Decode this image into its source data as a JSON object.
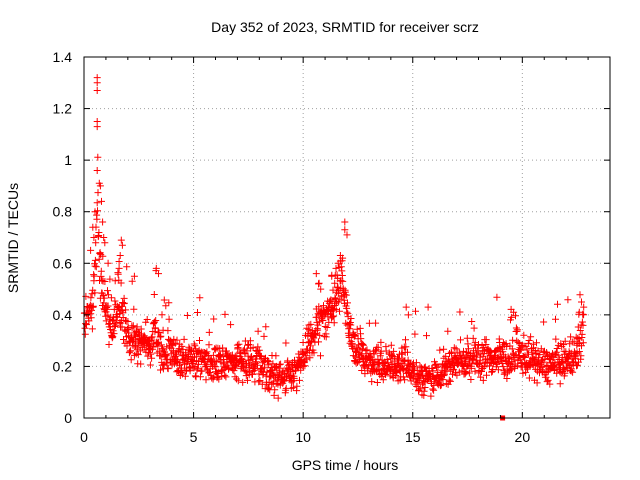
{
  "chart_data": {
    "type": "scatter",
    "title": "Day 352 of 2023, SRMTID for receiver scrz",
    "xlabel": "GPS time / hours",
    "ylabel": "SRMTID / TECUs",
    "xlim": [
      0,
      24
    ],
    "ylim": [
      0,
      1.4
    ],
    "xticks": [
      0,
      5,
      10,
      15,
      20
    ],
    "xtick_labels": [
      "0",
      "5",
      "10",
      "15",
      "20"
    ],
    "yticks": [
      0,
      0.2,
      0.4,
      0.6,
      0.8,
      1.0,
      1.2,
      1.4
    ],
    "ytick_labels": [
      "0",
      "0.2",
      "0.4",
      "0.6",
      "0.8",
      "1",
      "1.2",
      "1.4"
    ],
    "grid": true,
    "marker": "plus",
    "color": "#ff0000",
    "series": [
      {
        "name": "SRMTID",
        "profile_x": [
          0.0,
          0.3,
          0.5,
          0.6,
          0.7,
          0.8,
          1.0,
          1.3,
          1.6,
          1.8,
          2.0,
          2.5,
          3.0,
          3.3,
          3.5,
          4.0,
          5.0,
          6.0,
          7.0,
          8.0,
          8.5,
          9.0,
          9.5,
          10.0,
          10.5,
          11.0,
          11.5,
          11.8,
          12.0,
          12.3,
          12.7,
          13.0,
          14.0,
          14.5,
          15.0,
          15.5,
          16.0,
          17.0,
          18.0,
          19.0,
          19.5,
          20.0,
          21.0,
          22.0,
          22.5,
          22.8
        ],
        "profile_y": [
          0.36,
          0.4,
          0.55,
          0.9,
          0.62,
          0.55,
          0.42,
          0.35,
          0.45,
          0.4,
          0.32,
          0.28,
          0.3,
          0.32,
          0.25,
          0.25,
          0.22,
          0.21,
          0.22,
          0.22,
          0.17,
          0.15,
          0.18,
          0.22,
          0.32,
          0.4,
          0.45,
          0.55,
          0.4,
          0.28,
          0.24,
          0.22,
          0.2,
          0.22,
          0.18,
          0.15,
          0.17,
          0.22,
          0.23,
          0.24,
          0.22,
          0.25,
          0.2,
          0.22,
          0.25,
          0.35
        ],
        "spikes": [
          {
            "x": 0.6,
            "y": 1.32
          },
          {
            "x": 0.6,
            "y": 1.3
          },
          {
            "x": 0.6,
            "y": 1.27
          },
          {
            "x": 0.6,
            "y": 1.15
          },
          {
            "x": 0.6,
            "y": 1.13
          },
          {
            "x": 0.6,
            "y": 0.96
          },
          {
            "x": 0.7,
            "y": 0.91
          },
          {
            "x": 0.75,
            "y": 0.9
          },
          {
            "x": 0.8,
            "y": 0.84
          },
          {
            "x": 0.5,
            "y": 0.8
          },
          {
            "x": 0.85,
            "y": 0.76
          },
          {
            "x": 0.4,
            "y": 0.74
          },
          {
            "x": 0.45,
            "y": 0.7
          },
          {
            "x": 0.9,
            "y": 0.7
          },
          {
            "x": 0.95,
            "y": 0.68
          },
          {
            "x": 0.3,
            "y": 0.65
          },
          {
            "x": 1.1,
            "y": 0.6
          },
          {
            "x": 1.7,
            "y": 0.69
          },
          {
            "x": 1.75,
            "y": 0.67
          },
          {
            "x": 1.6,
            "y": 0.58
          },
          {
            "x": 1.65,
            "y": 0.63
          },
          {
            "x": 2.2,
            "y": 0.53
          },
          {
            "x": 2.3,
            "y": 0.55
          },
          {
            "x": 3.3,
            "y": 0.58
          },
          {
            "x": 3.4,
            "y": 0.56
          },
          {
            "x": 11.9,
            "y": 0.76
          },
          {
            "x": 11.9,
            "y": 0.73
          },
          {
            "x": 12.0,
            "y": 0.71
          },
          {
            "x": 11.7,
            "y": 0.63
          },
          {
            "x": 11.8,
            "y": 0.62
          },
          {
            "x": 11.5,
            "y": 0.58
          },
          {
            "x": 11.6,
            "y": 0.6
          },
          {
            "x": 11.3,
            "y": 0.55
          },
          {
            "x": 10.6,
            "y": 0.56
          },
          {
            "x": 10.7,
            "y": 0.52
          },
          {
            "x": 10.8,
            "y": 0.5
          },
          {
            "x": 14.7,
            "y": 0.43
          },
          {
            "x": 14.8,
            "y": 0.4
          },
          {
            "x": 15.7,
            "y": 0.43
          },
          {
            "x": 19.5,
            "y": 0.39
          },
          {
            "x": 19.6,
            "y": 0.41
          },
          {
            "x": 22.7,
            "y": 0.45
          },
          {
            "x": 22.8,
            "y": 0.43
          },
          {
            "x": 22.6,
            "y": 0.41
          }
        ],
        "outliers": [
          {
            "x": 19.1,
            "y": 0.0
          }
        ]
      }
    ]
  }
}
